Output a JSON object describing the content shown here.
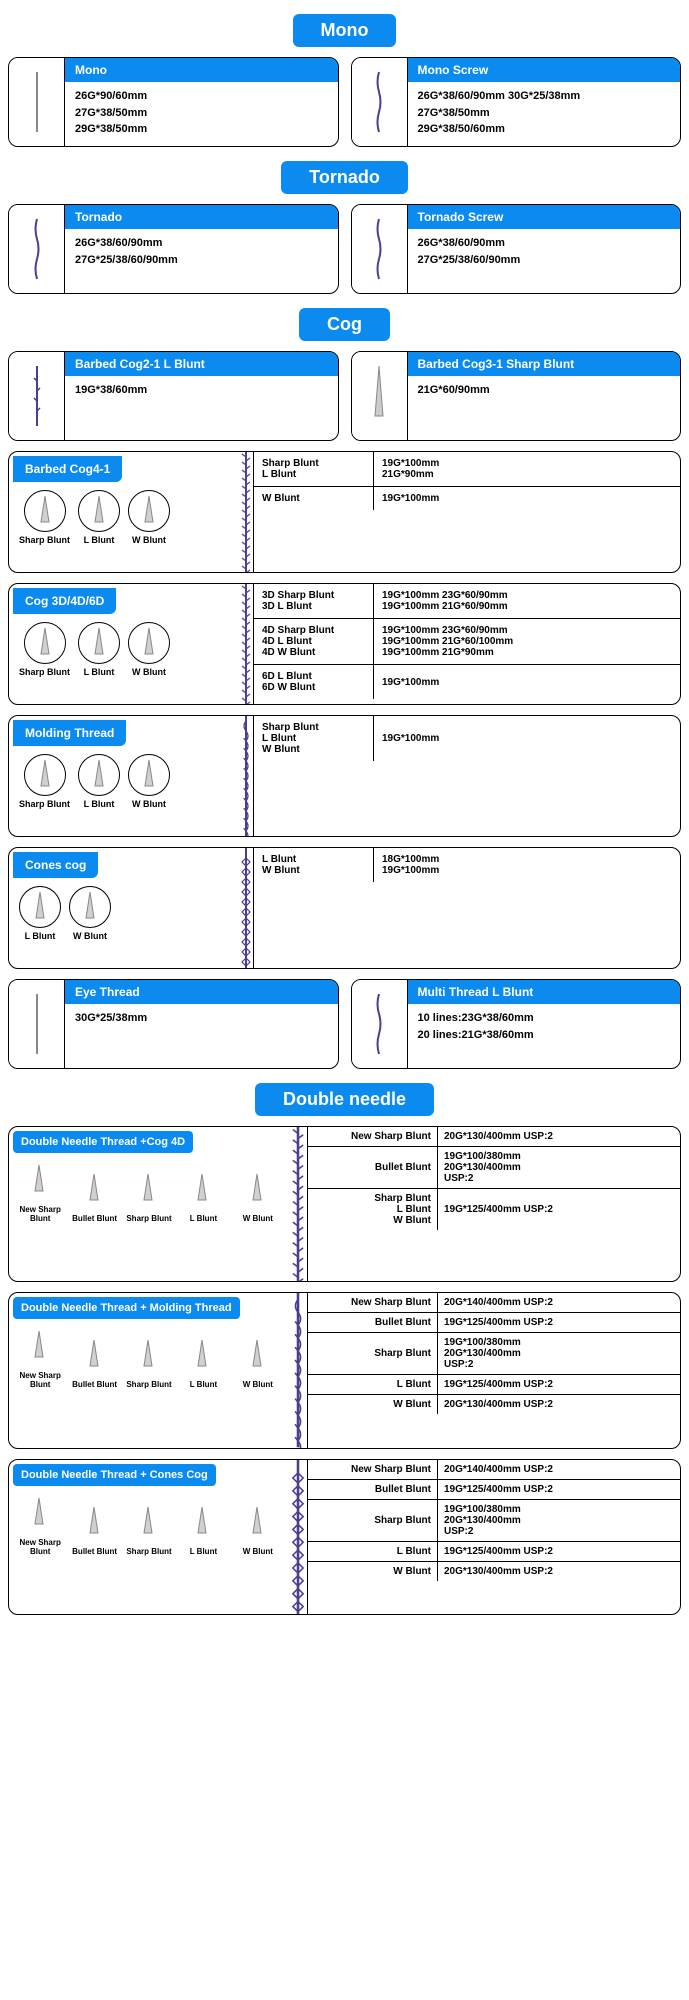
{
  "colors": {
    "blue": "#0b8bf0",
    "purple": "#4b3d8f"
  },
  "sections": {
    "mono": {
      "header": "Mono",
      "cards": [
        {
          "title": "Mono",
          "specs": [
            "26G*90/60mm",
            "27G*38/50mm",
            "29G*38/50mm"
          ]
        },
        {
          "title": "Mono Screw",
          "specs": [
            "26G*38/60/90mm 30G*25/38mm",
            "27G*38/50mm",
            "29G*38/50/60mm"
          ]
        }
      ]
    },
    "tornado": {
      "header": "Tornado",
      "cards": [
        {
          "title": "Tornado",
          "specs": [
            "26G*38/60/90mm",
            "27G*25/38/60/90mm"
          ]
        },
        {
          "title": "Tornado Screw",
          "specs": [
            "26G*38/60/90mm",
            "27G*25/38/60/90mm"
          ]
        }
      ]
    },
    "cog": {
      "header": "Cog",
      "top": [
        {
          "title": "Barbed Cog2-1 L Blunt",
          "specs": [
            "19G*38/60mm"
          ]
        },
        {
          "title": "Barbed Cog3-1 Sharp Blunt",
          "specs": [
            "21G*60/90mm"
          ]
        }
      ],
      "barbed4": {
        "title": "Barbed Cog4-1",
        "tips": [
          "Sharp Blunt",
          "L Blunt",
          "W Blunt"
        ],
        "rows": [
          {
            "lab": [
              "Sharp Blunt",
              "L Blunt"
            ],
            "val": [
              "19G*100mm",
              "21G*90mm"
            ]
          },
          {
            "lab": [
              "W Blunt"
            ],
            "val": [
              "19G*100mm"
            ]
          }
        ]
      },
      "cog3d": {
        "title": "Cog 3D/4D/6D",
        "tips": [
          "Sharp Blunt",
          "L Blunt",
          "W Blunt"
        ],
        "rows": [
          {
            "lab": [
              "3D Sharp Blunt",
              "3D L Blunt"
            ],
            "val": [
              "19G*100mm 23G*60/90mm",
              "19G*100mm 21G*60/90mm"
            ]
          },
          {
            "lab": [
              "4D Sharp Blunt",
              "4D L Blunt",
              "4D W Blunt"
            ],
            "val": [
              "19G*100mm 23G*60/90mm",
              "19G*100mm 21G*60/100mm",
              "19G*100mm 21G*90mm"
            ]
          },
          {
            "lab": [
              "6D L Blunt",
              "6D W Blunt"
            ],
            "val": [
              "19G*100mm"
            ]
          }
        ]
      },
      "molding": {
        "title": "Molding Thread",
        "tips": [
          "Sharp Blunt",
          "L Blunt",
          "W Blunt"
        ],
        "rows": [
          {
            "lab": [
              "Sharp Blunt",
              "L Blunt",
              "W Blunt"
            ],
            "val": [
              "19G*100mm"
            ]
          }
        ]
      },
      "cones": {
        "title": "Cones cog",
        "tips": [
          "L Blunt",
          "W Blunt"
        ],
        "rows": [
          {
            "lab": [
              "L Blunt",
              "W Blunt"
            ],
            "val": [
              "18G*100mm",
              "19G*100mm"
            ]
          }
        ]
      },
      "bottom": [
        {
          "title": "Eye Thread",
          "specs": [
            "30G*25/38mm"
          ]
        },
        {
          "title": "Multi Thread L Blunt",
          "specs": [
            "10 lines:23G*38/60mm",
            "20 lines:21G*38/60mm"
          ]
        }
      ]
    },
    "double": {
      "header": "Double needle",
      "tips": [
        "New Sharp Blunt",
        "Bullet Blunt",
        "Sharp Blunt",
        "L Blunt",
        "W Blunt"
      ],
      "panels": [
        {
          "title": "Double Needle Thread +Cog 4D",
          "rows": [
            {
              "lab": "New Sharp Blunt",
              "val": [
                "20G*130/400mm USP:2"
              ]
            },
            {
              "lab": "Bullet Blunt",
              "val": [
                "19G*100/380mm",
                "20G*130/400mm",
                "USP:2"
              ]
            },
            {
              "lab": "Sharp Blunt\nL Blunt\nW Blunt",
              "val": [
                "19G*125/400mm USP:2"
              ]
            }
          ]
        },
        {
          "title": "Double Needle Thread + Molding Thread",
          "rows": [
            {
              "lab": "New Sharp Blunt",
              "val": [
                "20G*140/400mm USP:2"
              ]
            },
            {
              "lab": "Bullet Blunt",
              "val": [
                "19G*125/400mm USP:2"
              ]
            },
            {
              "lab": "Sharp Blunt",
              "val": [
                "19G*100/380mm",
                "20G*130/400mm",
                "USP:2"
              ]
            },
            {
              "lab": "L Blunt",
              "val": [
                "19G*125/400mm USP:2"
              ]
            },
            {
              "lab": "W Blunt",
              "val": [
                "20G*130/400mm USP:2"
              ]
            }
          ]
        },
        {
          "title": "Double Needle Thread + Cones Cog",
          "rows": [
            {
              "lab": "New Sharp Blunt",
              "val": [
                "20G*140/400mm USP:2"
              ]
            },
            {
              "lab": "Bullet Blunt",
              "val": [
                "19G*125/400mm USP:2"
              ]
            },
            {
              "lab": "Sharp Blunt",
              "val": [
                "19G*100/380mm",
                "20G*130/400mm",
                "USP:2"
              ]
            },
            {
              "lab": "L Blunt",
              "val": [
                "19G*125/400mm USP:2"
              ]
            },
            {
              "lab": "W Blunt",
              "val": [
                "20G*130/400mm USP:2"
              ]
            }
          ]
        }
      ]
    }
  }
}
